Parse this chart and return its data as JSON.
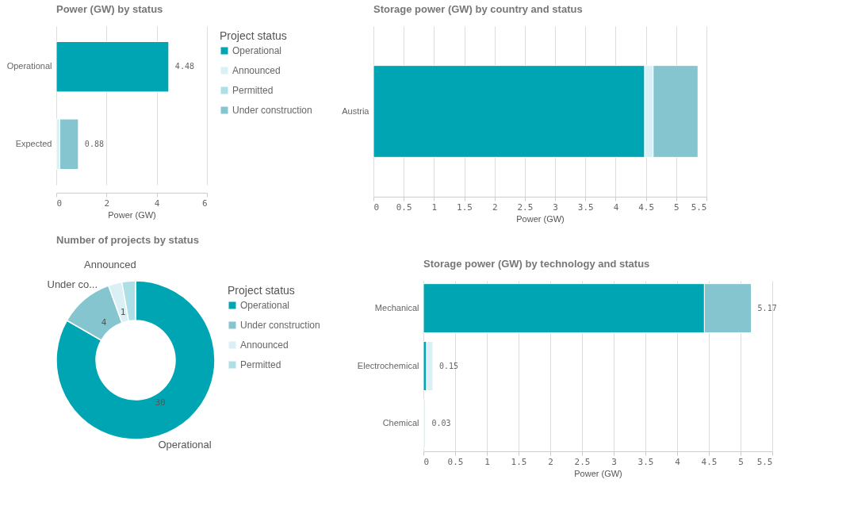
{
  "chart_data": [
    {
      "type": "bar",
      "orientation": "horizontal",
      "stacked": true,
      "title": "Power (GW) by status",
      "xlabel": "Power (GW)",
      "legend_title": "Project status",
      "legend": "right",
      "grid": "x",
      "categories": [
        "Operational",
        "Expected"
      ],
      "series": [
        {
          "name": "Operational",
          "color": "#00a5b4",
          "values": [
            4.48,
            null
          ]
        },
        {
          "name": "Announced",
          "color": "#daf0f4",
          "values": [
            null,
            0.14
          ]
        },
        {
          "name": "Permitted",
          "color": "#ade0e6",
          "values": [
            null,
            null
          ]
        },
        {
          "name": "Under construction",
          "color": "#85c5d0",
          "values": [
            null,
            0.74
          ]
        }
      ],
      "totals": [
        "4.48",
        "0.88"
      ],
      "xlim": [
        0,
        6
      ],
      "xticks": [
        0,
        2,
        4,
        6
      ]
    },
    {
      "type": "bar",
      "orientation": "horizontal",
      "stacked": true,
      "title": "Storage power (GW) by country and status",
      "xlabel": "Power (GW)",
      "grid": "x",
      "categories": [
        "Austria"
      ],
      "series": [
        {
          "color": "#00a5b4",
          "values": [
            4.48
          ]
        },
        {
          "color": "#daf0f4",
          "values": [
            0.14
          ]
        },
        {
          "color": "#85c5d0",
          "values": [
            0.74
          ]
        }
      ],
      "xlim": [
        0,
        5.5
      ],
      "xticks": [
        0,
        0.5,
        1,
        1.5,
        2,
        2.5,
        3,
        3.5,
        4,
        4.5,
        5,
        5.5
      ]
    },
    {
      "type": "donut",
      "title": "Number of projects by status",
      "legend_title": "Project status",
      "legend": "right",
      "categories": [
        "Operational",
        "Under construction",
        "Announced",
        "Permitted"
      ],
      "values": [
        30,
        4,
        1,
        1
      ],
      "colors": [
        "#00a5b4",
        "#85c5d0",
        "#daf0f4",
        "#ade0e6"
      ],
      "value_labels": [
        "30",
        "4",
        "1",
        null
      ],
      "annotations": [
        {
          "text": "Operational",
          "x": "Operational"
        },
        {
          "text": "Under co...",
          "x": "Under construction"
        },
        {
          "text": "Announced",
          "x": "Announced"
        }
      ]
    },
    {
      "type": "bar",
      "orientation": "horizontal",
      "stacked": true,
      "title": "Storage power (GW) by technology and status",
      "xlabel": "Power (GW)",
      "grid": "x",
      "categories": [
        "Mechanical",
        "Electrochemical",
        "Chemical"
      ],
      "series": [
        {
          "color": "#00a5b4",
          "values": [
            4.43,
            0.05,
            null
          ]
        },
        {
          "color": "#daf0f4",
          "values": [
            null,
            0.1,
            0.03
          ]
        },
        {
          "color": "#85c5d0",
          "values": [
            0.74,
            null,
            null
          ]
        }
      ],
      "totals": [
        "5.17",
        "0.15",
        "0.03"
      ],
      "xlim": [
        0,
        5.5
      ],
      "xticks": [
        0,
        0.5,
        1,
        1.5,
        2,
        2.5,
        3,
        3.5,
        4,
        4.5,
        5,
        5.5
      ]
    }
  ]
}
